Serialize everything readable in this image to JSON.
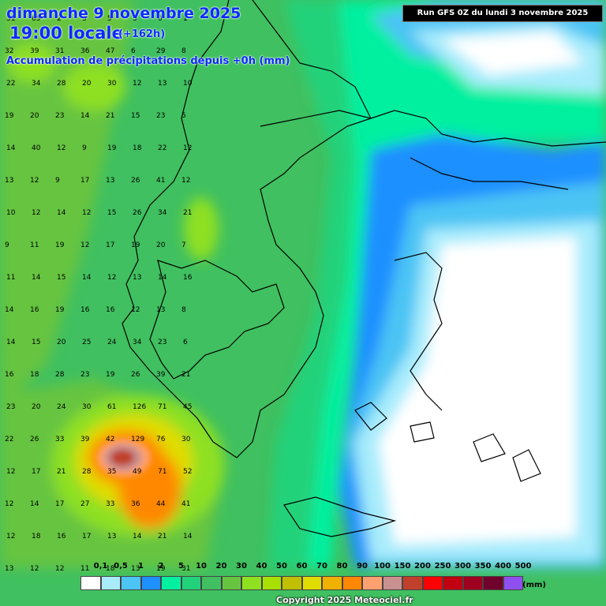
{
  "header": {
    "date": "dimanche 9 novembre 2025",
    "local_time": "19:00 locale",
    "lead_time": "(+162h)",
    "variable": "Accumulation de précipitations depuis +0h (mm)"
  },
  "run_info": "Run GFS 0Z du lundi 3 novembre 2025",
  "legend": {
    "unit": "(mm)",
    "labels": [
      "0,1",
      "0,5",
      "1",
      "2",
      "5",
      "10",
      "20",
      "30",
      "40",
      "50",
      "60",
      "70",
      "80",
      "90",
      "100",
      "150",
      "200",
      "250",
      "300",
      "350",
      "400",
      "500"
    ],
    "colors": [
      "#ffffff",
      "#a8ecfc",
      "#4cc4f4",
      "#1e90ff",
      "#00f0a0",
      "#22d27a",
      "#40c060",
      "#66c440",
      "#8ee020",
      "#a8e000",
      "#c0c000",
      "#e0dc00",
      "#f0b000",
      "#ff8800",
      "#ffa070",
      "#c89090",
      "#c0402c",
      "#ff0000",
      "#c00010",
      "#a00020",
      "#70002c",
      "#9050f0"
    ]
  },
  "copyright": "Copyright 2025 Meteociel.fr",
  "map_values": [
    {
      "v": "31"
    },
    {
      "v": "65"
    },
    {
      "v": "2"
    },
    {
      "v": "3"
    },
    {
      "v": "5"
    },
    {
      "v": "3"
    },
    {
      "v": "0"
    },
    {
      "v": "1"
    },
    {
      "v": "32"
    },
    {
      "v": "39"
    },
    {
      "v": "31"
    },
    {
      "v": "36"
    },
    {
      "v": "47"
    },
    {
      "v": "6"
    },
    {
      "v": "29"
    },
    {
      "v": "8"
    },
    {
      "v": "22"
    },
    {
      "v": "34"
    },
    {
      "v": "28"
    },
    {
      "v": "20"
    },
    {
      "v": "30"
    },
    {
      "v": "12"
    },
    {
      "v": "13"
    },
    {
      "v": "10"
    },
    {
      "v": "19"
    },
    {
      "v": "20"
    },
    {
      "v": "23"
    },
    {
      "v": "14"
    },
    {
      "v": "21"
    },
    {
      "v": "15"
    },
    {
      "v": "23"
    },
    {
      "v": "5"
    },
    {
      "v": "14"
    },
    {
      "v": "40"
    },
    {
      "v": "12"
    },
    {
      "v": "9"
    },
    {
      "v": "19"
    },
    {
      "v": "18"
    },
    {
      "v": "22"
    },
    {
      "v": "12"
    },
    {
      "v": "13"
    },
    {
      "v": "12"
    },
    {
      "v": "9"
    },
    {
      "v": "17"
    },
    {
      "v": "13"
    },
    {
      "v": "26"
    },
    {
      "v": "41"
    },
    {
      "v": "12"
    },
    {
      "v": "10"
    },
    {
      "v": "12"
    },
    {
      "v": "14"
    },
    {
      "v": "12"
    },
    {
      "v": "15"
    },
    {
      "v": "26"
    },
    {
      "v": "34"
    },
    {
      "v": "21"
    },
    {
      "v": "9"
    },
    {
      "v": "11"
    },
    {
      "v": "19"
    },
    {
      "v": "12"
    },
    {
      "v": "17"
    },
    {
      "v": "19"
    },
    {
      "v": "20"
    },
    {
      "v": "7"
    },
    {
      "v": "11"
    },
    {
      "v": "14"
    },
    {
      "v": "15"
    },
    {
      "v": "14"
    },
    {
      "v": "12"
    },
    {
      "v": "13"
    },
    {
      "v": "14"
    },
    {
      "v": "16"
    },
    {
      "v": "14"
    },
    {
      "v": "16"
    },
    {
      "v": "19"
    },
    {
      "v": "16"
    },
    {
      "v": "16"
    },
    {
      "v": "12"
    },
    {
      "v": "13"
    },
    {
      "v": "8"
    },
    {
      "v": "14"
    },
    {
      "v": "15"
    },
    {
      "v": "20"
    },
    {
      "v": "25"
    },
    {
      "v": "24"
    },
    {
      "v": "34"
    },
    {
      "v": "23"
    },
    {
      "v": "6"
    },
    {
      "v": "16"
    },
    {
      "v": "18"
    },
    {
      "v": "28"
    },
    {
      "v": "23"
    },
    {
      "v": "19"
    },
    {
      "v": "26"
    },
    {
      "v": "39"
    },
    {
      "v": "21"
    },
    {
      "v": "23"
    },
    {
      "v": "20"
    },
    {
      "v": "24"
    },
    {
      "v": "30"
    },
    {
      "v": "61"
    },
    {
      "v": "126"
    },
    {
      "v": "71"
    },
    {
      "v": "45"
    },
    {
      "v": "22"
    },
    {
      "v": "26"
    },
    {
      "v": "33"
    },
    {
      "v": "39"
    },
    {
      "v": "42"
    },
    {
      "v": "129"
    },
    {
      "v": "76"
    },
    {
      "v": "30"
    },
    {
      "v": "12"
    },
    {
      "v": "17"
    },
    {
      "v": "21"
    },
    {
      "v": "28"
    },
    {
      "v": "35"
    },
    {
      "v": "49"
    },
    {
      "v": "71"
    },
    {
      "v": "52"
    },
    {
      "v": "12"
    },
    {
      "v": "14"
    },
    {
      "v": "17"
    },
    {
      "v": "27"
    },
    {
      "v": "33"
    },
    {
      "v": "36"
    },
    {
      "v": "44"
    },
    {
      "v": "41"
    },
    {
      "v": "12"
    },
    {
      "v": "18"
    },
    {
      "v": "16"
    },
    {
      "v": "17"
    },
    {
      "v": "13"
    },
    {
      "v": "14"
    },
    {
      "v": "21"
    },
    {
      "v": "14"
    },
    {
      "v": "13"
    },
    {
      "v": "12"
    },
    {
      "v": "12"
    },
    {
      "v": "11"
    },
    {
      "v": "18"
    },
    {
      "v": "13"
    },
    {
      "v": "19"
    },
    {
      "v": "31"
    }
  ]
}
